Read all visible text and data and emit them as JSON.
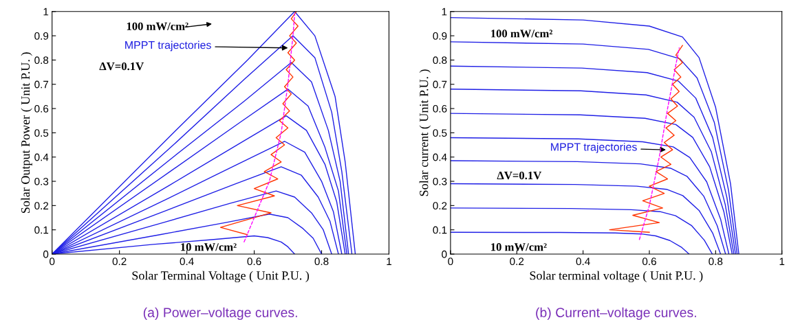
{
  "chart_data": [
    {
      "type": "line",
      "title": "(a) Power–voltage curves.",
      "xlabel": "Solar Terminal Voltage ( Unit P.U. )",
      "ylabel": "Solar Output Power ( Unit P.U. )",
      "xlim": [
        0,
        1
      ],
      "ylim": [
        0,
        1
      ],
      "xticks": [
        0,
        0.2,
        0.4,
        0.6,
        0.8,
        1
      ],
      "yticks": [
        0,
        0.1,
        0.2,
        0.3,
        0.4,
        0.5,
        0.6,
        0.7,
        0.8,
        0.9,
        1
      ],
      "grid": false,
      "annotations": [
        "100 mW/cm²",
        {
          "text": "MPPT trajectories",
          "x": 0.7,
          "y": 0.85
        },
        "ΔV=0.1V",
        "10 mW/cm²"
      ],
      "series": [
        {
          "color": "#1f1fe6",
          "x": [
            0,
            0.36,
            0.58,
            0.72,
            0.78,
            0.84,
            0.87,
            0.9
          ],
          "values": [
            0,
            0.5,
            0.8,
            1.0,
            0.9,
            0.65,
            0.38,
            0
          ]
        },
        {
          "color": "#1f1fe6",
          "x": [
            0,
            0.36,
            0.57,
            0.715,
            0.78,
            0.83,
            0.86,
            0.89
          ],
          "values": [
            0,
            0.45,
            0.72,
            0.9,
            0.81,
            0.585,
            0.34,
            0
          ]
        },
        {
          "color": "#1f1fe6",
          "x": [
            0,
            0.355,
            0.57,
            0.71,
            0.77,
            0.82,
            0.855,
            0.88
          ],
          "values": [
            0,
            0.395,
            0.63,
            0.79,
            0.71,
            0.51,
            0.3,
            0
          ]
        },
        {
          "color": "#1f1fe6",
          "x": [
            0,
            0.35,
            0.56,
            0.7,
            0.76,
            0.81,
            0.85,
            0.875
          ],
          "values": [
            0,
            0.34,
            0.545,
            0.68,
            0.61,
            0.44,
            0.26,
            0
          ]
        },
        {
          "color": "#1f1fe6",
          "x": [
            0,
            0.35,
            0.555,
            0.695,
            0.755,
            0.81,
            0.845,
            0.87
          ],
          "values": [
            0,
            0.285,
            0.455,
            0.57,
            0.51,
            0.37,
            0.215,
            0
          ]
        },
        {
          "color": "#1f1fe6",
          "x": [
            0,
            0.345,
            0.55,
            0.69,
            0.75,
            0.8,
            0.835,
            0.86
          ],
          "values": [
            0,
            0.23,
            0.37,
            0.465,
            0.42,
            0.3,
            0.175,
            0
          ]
        },
        {
          "color": "#1f1fe6",
          "x": [
            0,
            0.34,
            0.545,
            0.68,
            0.74,
            0.79,
            0.825,
            0.85
          ],
          "values": [
            0,
            0.18,
            0.29,
            0.36,
            0.325,
            0.235,
            0.135,
            0
          ]
        },
        {
          "color": "#1f1fe6",
          "x": [
            0,
            0.33,
            0.53,
            0.665,
            0.72,
            0.77,
            0.805,
            0.83
          ],
          "values": [
            0,
            0.13,
            0.21,
            0.26,
            0.235,
            0.17,
            0.1,
            0
          ]
        },
        {
          "color": "#1f1fe6",
          "x": [
            0,
            0.32,
            0.515,
            0.645,
            0.7,
            0.745,
            0.775,
            0.8
          ],
          "values": [
            0,
            0.08,
            0.13,
            0.165,
            0.15,
            0.105,
            0.065,
            0
          ]
        },
        {
          "color": "#1f1fe6",
          "x": [
            0,
            0.3,
            0.48,
            0.6,
            0.64,
            0.68,
            0.7,
            0.72
          ],
          "values": [
            0,
            0.04,
            0.06,
            0.075,
            0.068,
            0.05,
            0.03,
            0
          ]
        },
        {
          "color": "#ff3300",
          "x": [
            0.58,
            0.5,
            0.65,
            0.55,
            0.66,
            0.6,
            0.67,
            0.63,
            0.68,
            0.65,
            0.69,
            0.665,
            0.7,
            0.675,
            0.705,
            0.685,
            0.71,
            0.69,
            0.715,
            0.695,
            0.72,
            0.7,
            0.725,
            0.705,
            0.73,
            0.71,
            0.725
          ],
          "values": [
            0.08,
            0.11,
            0.17,
            0.2,
            0.24,
            0.27,
            0.31,
            0.34,
            0.38,
            0.41,
            0.45,
            0.48,
            0.52,
            0.55,
            0.59,
            0.62,
            0.66,
            0.69,
            0.73,
            0.76,
            0.8,
            0.83,
            0.87,
            0.9,
            0.94,
            0.97,
            1.0
          ]
        },
        {
          "color": "#ff00ff",
          "line_style": "dashed",
          "x": [
            0.57,
            0.6,
            0.645,
            0.68,
            0.7,
            0.715,
            0.72
          ],
          "values": [
            0.05,
            0.15,
            0.3,
            0.5,
            0.7,
            0.9,
            0.99
          ]
        }
      ]
    },
    {
      "type": "line",
      "title": "(b) Current–voltage curves.",
      "xlabel": "Solar terminal voltage ( Unit P.U. )",
      "ylabel": "Solar current ( Unit P.U. )",
      "xlim": [
        0,
        1
      ],
      "ylim": [
        0,
        1
      ],
      "xticks": [
        0,
        0.2,
        0.4,
        0.6,
        0.8,
        1
      ],
      "yticks": [
        0,
        0.1,
        0.2,
        0.3,
        0.4,
        0.5,
        0.6,
        0.7,
        0.8,
        0.9,
        1
      ],
      "grid": false,
      "annotations": [
        {
          "text": "MPPT trajectories",
          "x": 0.65,
          "y": 0.43
        },
        "100 mW/cm²",
        "ΔV=0.1V",
        "10 mW/cm²"
      ],
      "series": [
        {
          "color": "#1f1fe6",
          "x": [
            0,
            0.4,
            0.6,
            0.7,
            0.75,
            0.8,
            0.845,
            0.87
          ],
          "values": [
            0.975,
            0.965,
            0.94,
            0.895,
            0.81,
            0.605,
            0.29,
            0
          ]
        },
        {
          "color": "#1f1fe6",
          "x": [
            0,
            0.4,
            0.597,
            0.692,
            0.744,
            0.796,
            0.839,
            0.865
          ],
          "values": [
            0.875,
            0.866,
            0.844,
            0.805,
            0.726,
            0.543,
            0.263,
            0
          ]
        },
        {
          "color": "#1f1fe6",
          "x": [
            0,
            0.396,
            0.593,
            0.688,
            0.74,
            0.791,
            0.834,
            0.86
          ],
          "values": [
            0.775,
            0.767,
            0.748,
            0.713,
            0.643,
            0.481,
            0.233,
            0
          ]
        },
        {
          "color": "#1f1fe6",
          "x": [
            0,
            0.393,
            0.59,
            0.684,
            0.735,
            0.787,
            0.829,
            0.855
          ],
          "values": [
            0.68,
            0.673,
            0.656,
            0.626,
            0.564,
            0.422,
            0.204,
            0
          ]
        },
        {
          "color": "#1f1fe6",
          "x": [
            0,
            0.391,
            0.587,
            0.68,
            0.731,
            0.782,
            0.825,
            0.85
          ],
          "values": [
            0.58,
            0.574,
            0.56,
            0.534,
            0.481,
            0.36,
            0.174,
            0
          ]
        },
        {
          "color": "#1f1fe6",
          "x": [
            0,
            0.386,
            0.58,
            0.672,
            0.722,
            0.773,
            0.815,
            0.84
          ],
          "values": [
            0.48,
            0.475,
            0.463,
            0.442,
            0.398,
            0.298,
            0.144,
            0
          ]
        },
        {
          "color": "#1f1fe6",
          "x": [
            0,
            0.382,
            0.573,
            0.664,
            0.714,
            0.764,
            0.805,
            0.83
          ],
          "values": [
            0.385,
            0.381,
            0.372,
            0.354,
            0.32,
            0.239,
            0.116,
            0
          ]
        },
        {
          "color": "#1f1fe6",
          "x": [
            0,
            0.375,
            0.562,
            0.652,
            0.701,
            0.75,
            0.791,
            0.815
          ],
          "values": [
            0.29,
            0.287,
            0.28,
            0.267,
            0.241,
            0.18,
            0.087,
            0
          ]
        },
        {
          "color": "#1f1fe6",
          "x": [
            0,
            0.363,
            0.545,
            0.632,
            0.679,
            0.727,
            0.766,
            0.79
          ],
          "values": [
            0.19,
            0.188,
            0.183,
            0.175,
            0.158,
            0.118,
            0.057,
            0
          ]
        },
        {
          "color": "#1f1fe6",
          "x": [
            0,
            0.331,
            0.497,
            0.576,
            0.619,
            0.662,
            0.698,
            0.72
          ],
          "values": [
            0.09,
            0.089,
            0.087,
            0.083,
            0.075,
            0.056,
            0.027,
            0
          ]
        },
        {
          "color": "#ff3300",
          "x": [
            0.6,
            0.48,
            0.63,
            0.55,
            0.64,
            0.58,
            0.645,
            0.6,
            0.655,
            0.62,
            0.665,
            0.635,
            0.67,
            0.645,
            0.675,
            0.65,
            0.68,
            0.655,
            0.685,
            0.665,
            0.69,
            0.67,
            0.695,
            0.675,
            0.7,
            0.68,
            0.7
          ],
          "values": [
            0.09,
            0.1,
            0.13,
            0.16,
            0.19,
            0.22,
            0.25,
            0.28,
            0.31,
            0.34,
            0.37,
            0.4,
            0.43,
            0.46,
            0.49,
            0.52,
            0.55,
            0.58,
            0.61,
            0.64,
            0.67,
            0.7,
            0.73,
            0.76,
            0.79,
            0.82,
            0.86
          ]
        },
        {
          "color": "#ff00ff",
          "line_style": "dashed",
          "x": [
            0.57,
            0.6,
            0.63,
            0.655,
            0.68,
            0.69
          ],
          "values": [
            0.06,
            0.2,
            0.4,
            0.6,
            0.78,
            0.85
          ]
        }
      ]
    }
  ]
}
